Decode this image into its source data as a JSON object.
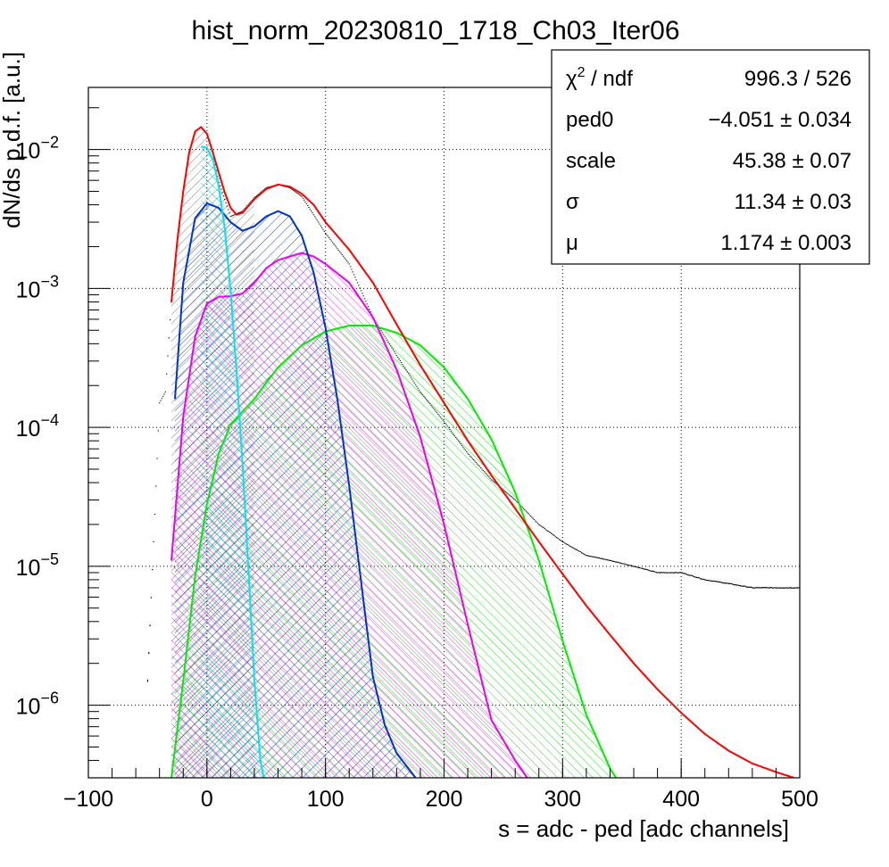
{
  "chart_data": {
    "type": "line",
    "title": "hist_norm_20230810_1718_Ch03_Iter06",
    "xlabel": "s = adc - ped [adc channels]",
    "ylabel": "dN/ds p.d.f. [a.u.]",
    "xlim": [
      -100,
      500
    ],
    "ylim": [
      3e-07,
      0.028
    ],
    "yscale": "log",
    "grid": true,
    "x_ticks": [
      "−100",
      "0",
      "100",
      "200",
      "300",
      "400",
      "500"
    ],
    "y_ticks": [
      {
        "base": "10",
        "exp": "−2",
        "value": 0.01
      },
      {
        "base": "10",
        "exp": "−3",
        "value": 0.001
      },
      {
        "base": "10",
        "exp": "−4",
        "value": 0.0001
      },
      {
        "base": "10",
        "exp": "−5",
        "value": 1e-05
      },
      {
        "base": "10",
        "exp": "−6",
        "value": 1e-06
      }
    ],
    "series": [
      {
        "role": "data",
        "color": "#000000",
        "style": "histogram-with-error-bars",
        "x": [
          -50,
          -40,
          -35,
          -30,
          -25,
          -20,
          -15,
          -10,
          -5,
          0,
          5,
          10,
          20,
          30,
          40,
          50,
          60,
          70,
          80,
          100,
          120,
          140,
          160,
          180,
          200,
          220,
          240,
          260,
          280,
          300,
          320,
          340,
          360,
          380,
          400,
          420,
          440,
          460,
          480,
          500
        ],
        "y": [
          1.5e-06,
          0.00015,
          0.00018,
          0.0008,
          0.0022,
          0.005,
          0.0095,
          0.0135,
          0.0145,
          0.013,
          0.0095,
          0.0058,
          0.0033,
          0.0036,
          0.0045,
          0.0053,
          0.0056,
          0.0053,
          0.0046,
          0.0025,
          0.0015,
          0.00062,
          0.00033,
          0.00018,
          0.00011,
          6.5e-05,
          4.2e-05,
          3e-05,
          2e-05,
          1.5e-05,
          1.2e-05,
          1.1e-05,
          1e-05,
          9e-06,
          9e-06,
          8e-06,
          7.5e-06,
          7e-06,
          7e-06,
          7e-06
        ]
      },
      {
        "role": "total-fit",
        "color": "#ff0000",
        "x": [
          -30,
          -25,
          -20,
          -15,
          -10,
          -5,
          0,
          5,
          10,
          15,
          20,
          25,
          30,
          40,
          50,
          60,
          70,
          80,
          90,
          100,
          120,
          140,
          160,
          180,
          200,
          220,
          240,
          260,
          280,
          300,
          320,
          340,
          360,
          380,
          400,
          420,
          440,
          460,
          480,
          495
        ],
        "y": [
          0.0008,
          0.0022,
          0.005,
          0.0095,
          0.0135,
          0.0145,
          0.013,
          0.0095,
          0.0068,
          0.0049,
          0.0038,
          0.0034,
          0.0035,
          0.0044,
          0.0052,
          0.0056,
          0.0054,
          0.0048,
          0.004,
          0.003,
          0.0019,
          0.0011,
          0.00055,
          0.00028,
          0.00015,
          8e-05,
          4.5e-05,
          2.6e-05,
          1.5e-05,
          8.8e-06,
          5.2e-06,
          3.2e-06,
          2e-06,
          1.3e-06,
          8.8e-07,
          6.2e-07,
          4.7e-07,
          3.8e-07,
          3.3e-07,
          3e-07
        ]
      },
      {
        "role": "component-0",
        "color": "#00e5ee",
        "fill": "hatched",
        "x": [
          -5,
          0,
          5,
          10,
          15,
          20,
          25,
          30,
          35,
          40,
          45,
          48
        ],
        "y": [
          0.0105,
          0.0103,
          0.0085,
          0.0054,
          0.0027,
          0.00095,
          0.00025,
          5.5e-05,
          9.5e-06,
          1.5e-06,
          4e-07,
          3e-07
        ]
      },
      {
        "role": "component-1",
        "color": "#0033cc",
        "fill": "hatched",
        "x": [
          -27,
          -20,
          -10,
          0,
          10,
          20,
          30,
          40,
          50,
          60,
          70,
          80,
          90,
          100,
          110,
          120,
          130,
          140,
          150,
          160,
          170,
          176
        ],
        "y": [
          0.00016,
          0.0011,
          0.0032,
          0.0041,
          0.0038,
          0.003,
          0.0026,
          0.0028,
          0.0033,
          0.0036,
          0.0033,
          0.0024,
          0.0013,
          0.00052,
          0.00016,
          3.8e-05,
          7.8e-06,
          1.6e-06,
          7.2e-07,
          4.5e-07,
          3.5e-07,
          3e-07
        ]
      },
      {
        "role": "component-2",
        "color": "#ee00ee",
        "fill": "hatched",
        "x": [
          -30,
          -20,
          -10,
          0,
          10,
          20,
          30,
          40,
          50,
          60,
          70,
          80,
          90,
          100,
          120,
          140,
          160,
          180,
          200,
          220,
          240,
          260,
          270
        ],
        "y": [
          1.1e-05,
          0.00012,
          0.00045,
          0.00078,
          0.00087,
          0.00088,
          0.00092,
          0.0011,
          0.0014,
          0.0016,
          0.0017,
          0.0018,
          0.0017,
          0.0015,
          0.0011,
          0.00062,
          0.00026,
          8.5e-05,
          2e-05,
          3.8e-06,
          7.8e-07,
          4e-07,
          3e-07
        ]
      },
      {
        "role": "component-3",
        "color": "#00ee00",
        "fill": "hatched",
        "x": [
          -30,
          -20,
          -10,
          0,
          10,
          20,
          30,
          40,
          50,
          60,
          80,
          100,
          120,
          140,
          160,
          180,
          200,
          220,
          240,
          260,
          280,
          300,
          320,
          340,
          345
        ],
        "y": [
          3e-07,
          1.5e-06,
          8.5e-06,
          2.8e-05,
          6.5e-05,
          0.000105,
          0.00013,
          0.00016,
          0.00021,
          0.00027,
          0.00039,
          0.00049,
          0.00054,
          0.00054,
          0.00048,
          0.00039,
          0.00027,
          0.00016,
          8.2e-05,
          3.4e-05,
          1.1e-05,
          2.9e-06,
          8.5e-07,
          3.5e-07,
          3e-07
        ]
      }
    ]
  },
  "stats_box": {
    "rows": [
      {
        "label": "χ",
        "label_sup": "2",
        "label_rest": " / ndf",
        "value": "996.3 / 526"
      },
      {
        "label": "ped0",
        "value": "−4.051 ± 0.034"
      },
      {
        "label": "scale",
        "value": "45.38  ± 0.07"
      },
      {
        "label": "σ",
        "value": "11.34  ± 0.03"
      },
      {
        "label": "μ",
        "value": "1.174  ± 0.003"
      }
    ]
  }
}
